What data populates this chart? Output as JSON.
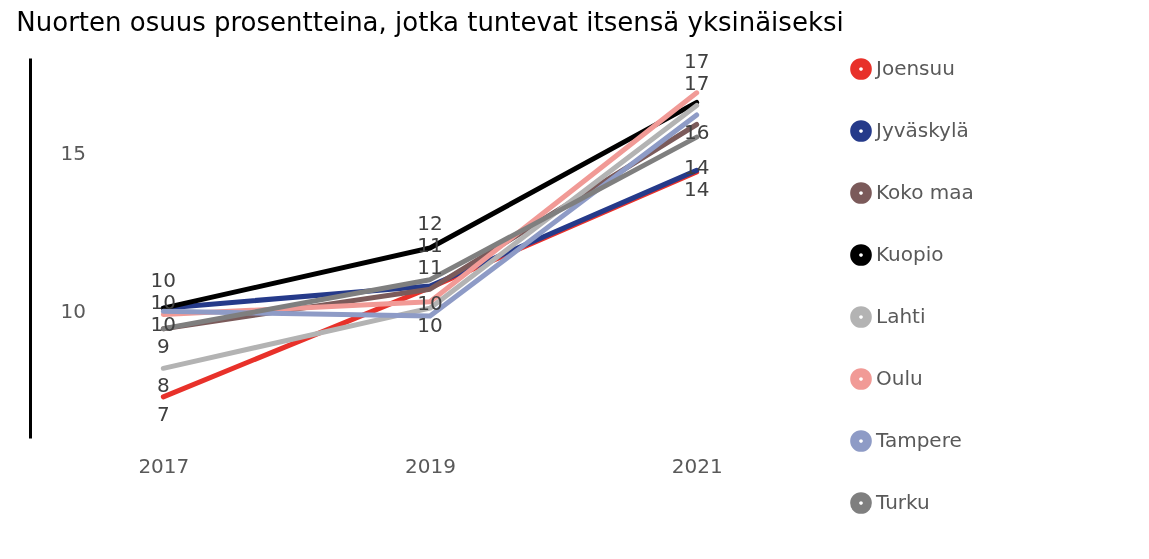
{
  "chart_data": {
    "type": "line",
    "title": "Nuorten osuus prosentteina, jotka tuntevat itsensä yksinäiseksi",
    "categories": [
      "2017",
      "2019",
      "2021"
    ],
    "series": [
      {
        "name": "Joensuu",
        "color": "#e8312a",
        "values": [
          7.3,
          10.75,
          14.4
        ],
        "value_labels": [
          "7",
          null,
          "14"
        ]
      },
      {
        "name": "Jyväskylä",
        "color": "#253a8a",
        "values": [
          10.1,
          10.8,
          14.45
        ],
        "value_labels": [
          "10",
          "11",
          "14"
        ]
      },
      {
        "name": "Koko maa",
        "color": "#7b5a5a",
        "values": [
          9.45,
          10.7,
          15.9
        ],
        "value_labels": [
          "9",
          null,
          null
        ]
      },
      {
        "name": "Kuopio",
        "color": "#000000",
        "values": [
          10.1,
          12.0,
          16.6
        ],
        "value_labels": [
          "10",
          "12",
          "17"
        ]
      },
      {
        "name": "Lahti",
        "color": "#b3b3b3",
        "values": [
          8.2,
          10.1,
          16.5
        ],
        "value_labels": [
          "8",
          "10",
          null
        ]
      },
      {
        "name": "Oulu",
        "color": "#f19a96",
        "values": [
          9.9,
          10.3,
          16.9
        ],
        "value_labels": [
          null,
          "10",
          "17"
        ]
      },
      {
        "name": "Tampere",
        "color": "#8e9bc6",
        "values": [
          10.0,
          9.85,
          16.2
        ],
        "value_labels": [
          "10",
          null,
          "16"
        ]
      },
      {
        "name": "Turku",
        "color": "#7f7f7f",
        "values": [
          9.45,
          11.0,
          15.5
        ],
        "value_labels": [
          null,
          "11",
          null
        ]
      }
    ],
    "ylim": [
      6,
      18
    ],
    "yticks": [
      10,
      15
    ],
    "grid": false,
    "legend": "right",
    "marker": "none",
    "line_style": "solid"
  }
}
